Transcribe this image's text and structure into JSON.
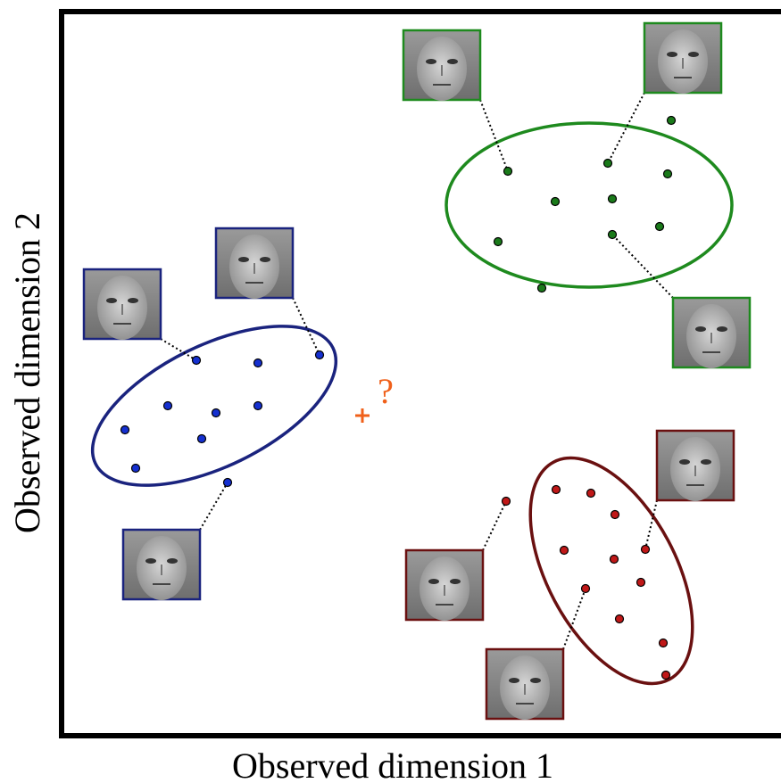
{
  "x_axis_label": "Observed dimension 1",
  "y_axis_label": "Observed dimension 2",
  "query_label": "?"
}
